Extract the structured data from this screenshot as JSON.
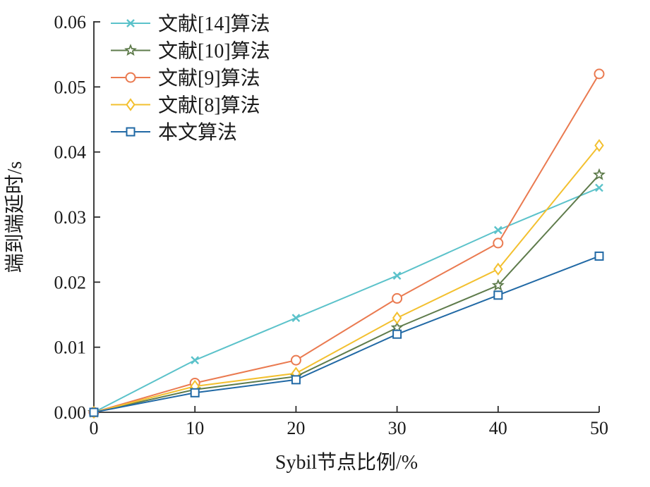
{
  "chart_data": {
    "type": "line",
    "x": [
      0,
      10,
      20,
      30,
      40,
      50
    ],
    "series": [
      {
        "name": "文献[14]算法",
        "color": "#5BC2CA",
        "marker": "x",
        "values": [
          0,
          0.008,
          0.0145,
          0.021,
          0.028,
          0.0345
        ]
      },
      {
        "name": "文献[10]算法",
        "color": "#5E7B4B",
        "marker": "star",
        "values": [
          0,
          0.0035,
          0.0055,
          0.013,
          0.0195,
          0.0365
        ]
      },
      {
        "name": "文献[9]算法",
        "color": "#EA7A50",
        "marker": "circle",
        "values": [
          0,
          0.0045,
          0.008,
          0.0175,
          0.026,
          0.052
        ]
      },
      {
        "name": "文献[8]算法",
        "color": "#F3C02F",
        "marker": "diamond",
        "values": [
          0,
          0.004,
          0.006,
          0.0145,
          0.022,
          0.041
        ]
      },
      {
        "name": "本文算法",
        "color": "#2169A5",
        "marker": "square",
        "values": [
          0,
          0.003,
          0.005,
          0.012,
          0.018,
          0.024
        ]
      }
    ],
    "title": "",
    "xlabel": "Sybil节点比例/%",
    "ylabel": "端到端延时/s",
    "xlim": [
      0,
      50
    ],
    "ylim": [
      0,
      0.06
    ],
    "xticks": [
      {
        "value": 0,
        "label": "0"
      },
      {
        "value": 10,
        "label": "10"
      },
      {
        "value": 20,
        "label": "20"
      },
      {
        "value": 30,
        "label": "30"
      },
      {
        "value": 40,
        "label": "40"
      },
      {
        "value": 50,
        "label": "50"
      }
    ],
    "yticks": [
      {
        "value": 0.0,
        "label": "0.00"
      },
      {
        "value": 0.01,
        "label": "0.01"
      },
      {
        "value": 0.02,
        "label": "0.02"
      },
      {
        "value": 0.03,
        "label": "0.03"
      },
      {
        "value": 0.04,
        "label": "0.04"
      },
      {
        "value": 0.05,
        "label": "0.05"
      },
      {
        "value": 0.06,
        "label": "0.06"
      }
    ],
    "legend_position": "upper-left",
    "grid": false,
    "axis_color": "#2b2b2b"
  }
}
